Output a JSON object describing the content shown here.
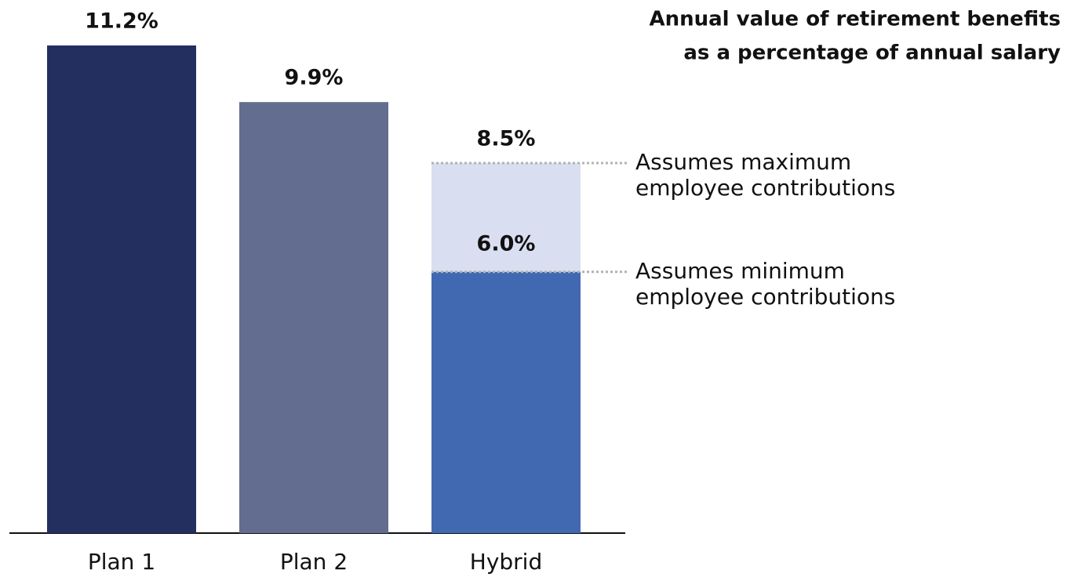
{
  "chart_data": {
    "type": "bar",
    "title": [
      "Annual value of retirement benefits",
      "as a percentage of annual salary"
    ],
    "categories": [
      "Plan 1",
      "Plan 2",
      "Hybrid"
    ],
    "values": [
      11.2,
      9.9,
      8.5
    ],
    "value_labels": [
      "11.2%",
      "9.9%",
      "8.5%"
    ],
    "colors": [
      "#232f5f",
      "#636d8f",
      "#d9dff0"
    ],
    "overlay": {
      "values": [
        null,
        null,
        6.0
      ],
      "value_labels": [
        null,
        null,
        "6.0%"
      ],
      "color": "#4169b2"
    },
    "annotations": [
      {
        "lines": [
          "Assumes maximum",
          "employee contributions"
        ]
      },
      {
        "lines": [
          "Assumes minimum",
          "employee contributions"
        ]
      }
    ],
    "ylim": [
      0,
      11.2
    ]
  }
}
